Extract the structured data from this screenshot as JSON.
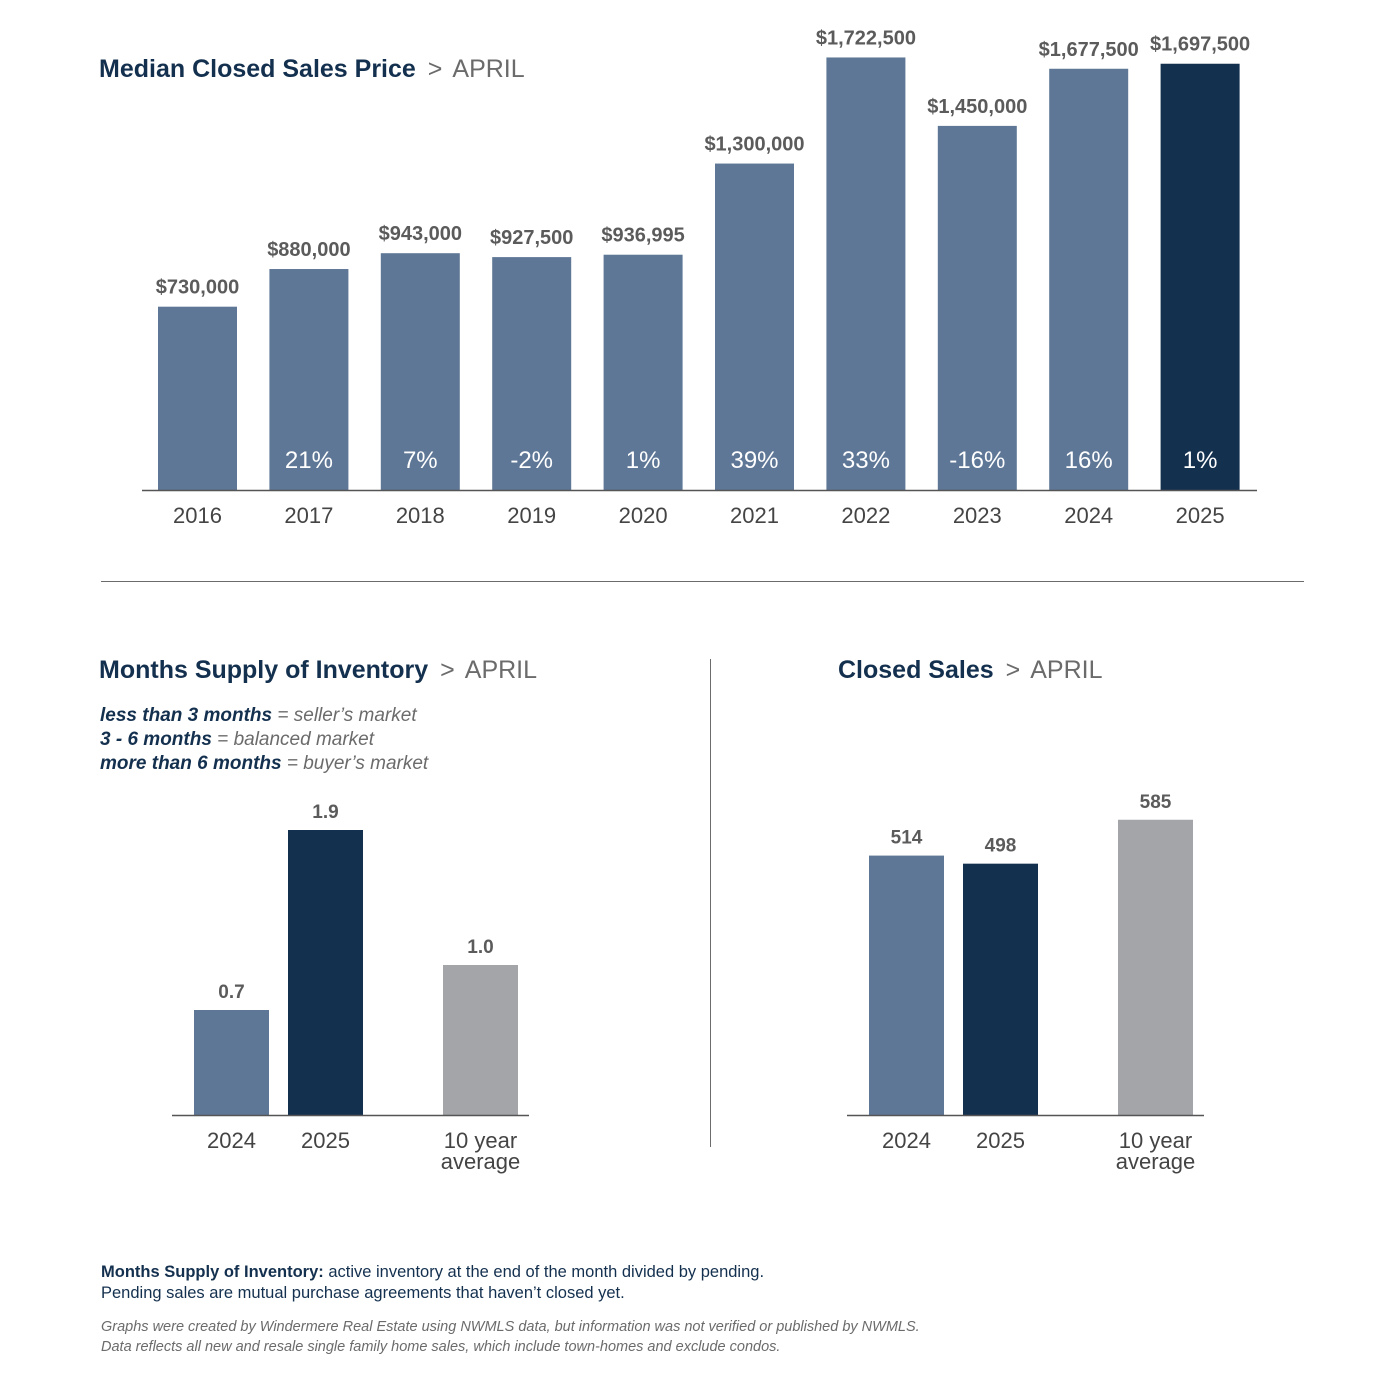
{
  "header": {
    "separator": ">"
  },
  "price_chart": {
    "title": "Median Closed Sales Price",
    "month": "APRIL",
    "chart_data": {
      "type": "bar",
      "categories": [
        "2016",
        "2017",
        "2018",
        "2019",
        "2020",
        "2021",
        "2022",
        "2023",
        "2024",
        "2025"
      ],
      "values": [
        730000,
        880000,
        943000,
        927500,
        936995,
        1300000,
        1722500,
        1450000,
        1677500,
        1697500
      ],
      "value_labels": [
        "$730,000",
        "$880,000",
        "$943,000",
        "$927,500",
        "$936,995",
        "$1,300,000",
        "$1,722,500",
        "$1,450,000",
        "$1,677,500",
        "$1,697,500"
      ],
      "change_labels": [
        "",
        "21%",
        "7%",
        "-2%",
        "1%",
        "39%",
        "33%",
        "-16%",
        "16%",
        "1%"
      ],
      "ylim": [
        0,
        1800000
      ],
      "colors": {
        "default": "#5f7796",
        "highlight": "#14304f"
      },
      "highlight_index": 9
    }
  },
  "supply_chart": {
    "title": "Months Supply of Inventory",
    "month": "APRIL",
    "legend": [
      {
        "term": "less than 3 months",
        "meaning": "seller’s market"
      },
      {
        "term": "3 - 6 months",
        "meaning": "balanced market"
      },
      {
        "term": "more than 6 months",
        "meaning": "buyer’s market"
      }
    ],
    "chart_data": {
      "type": "bar",
      "categories": [
        "2024",
        "2025",
        "10 year average"
      ],
      "category_lines": [
        [
          "2024"
        ],
        [
          "2025"
        ],
        [
          "10 year",
          "average"
        ]
      ],
      "values": [
        0.7,
        1.9,
        1.0
      ],
      "value_labels": [
        "0.7",
        "1.9",
        "1.0"
      ],
      "ylim": [
        0,
        2.1
      ],
      "colors": [
        "#5f7796",
        "#14304f",
        "#a3a5a8"
      ]
    }
  },
  "sales_chart": {
    "title": "Closed Sales",
    "month": "APRIL",
    "chart_data": {
      "type": "bar",
      "categories": [
        "2024",
        "2025",
        "10 year average"
      ],
      "category_lines": [
        [
          "2024"
        ],
        [
          "2025"
        ],
        [
          "10 year",
          "average"
        ]
      ],
      "values": [
        514,
        498,
        585
      ],
      "value_labels": [
        "514",
        "498",
        "585"
      ],
      "ylim": [
        0,
        640
      ],
      "colors": [
        "#5f7796",
        "#14304f",
        "#a3a5a8"
      ]
    }
  },
  "footnote": {
    "term": "Months Supply of Inventory:",
    "line1": " active inventory at the end of the month divided by pending.",
    "line2": "Pending sales are mutual purchase agreements that haven’t closed yet."
  },
  "disclaimer": {
    "line1": "Graphs were created by Windermere Real Estate using NWMLS data, but information was not verified or published by NWMLS.",
    "line2": "Data reflects all new and resale single family home sales, which include town-homes and exclude condos."
  }
}
